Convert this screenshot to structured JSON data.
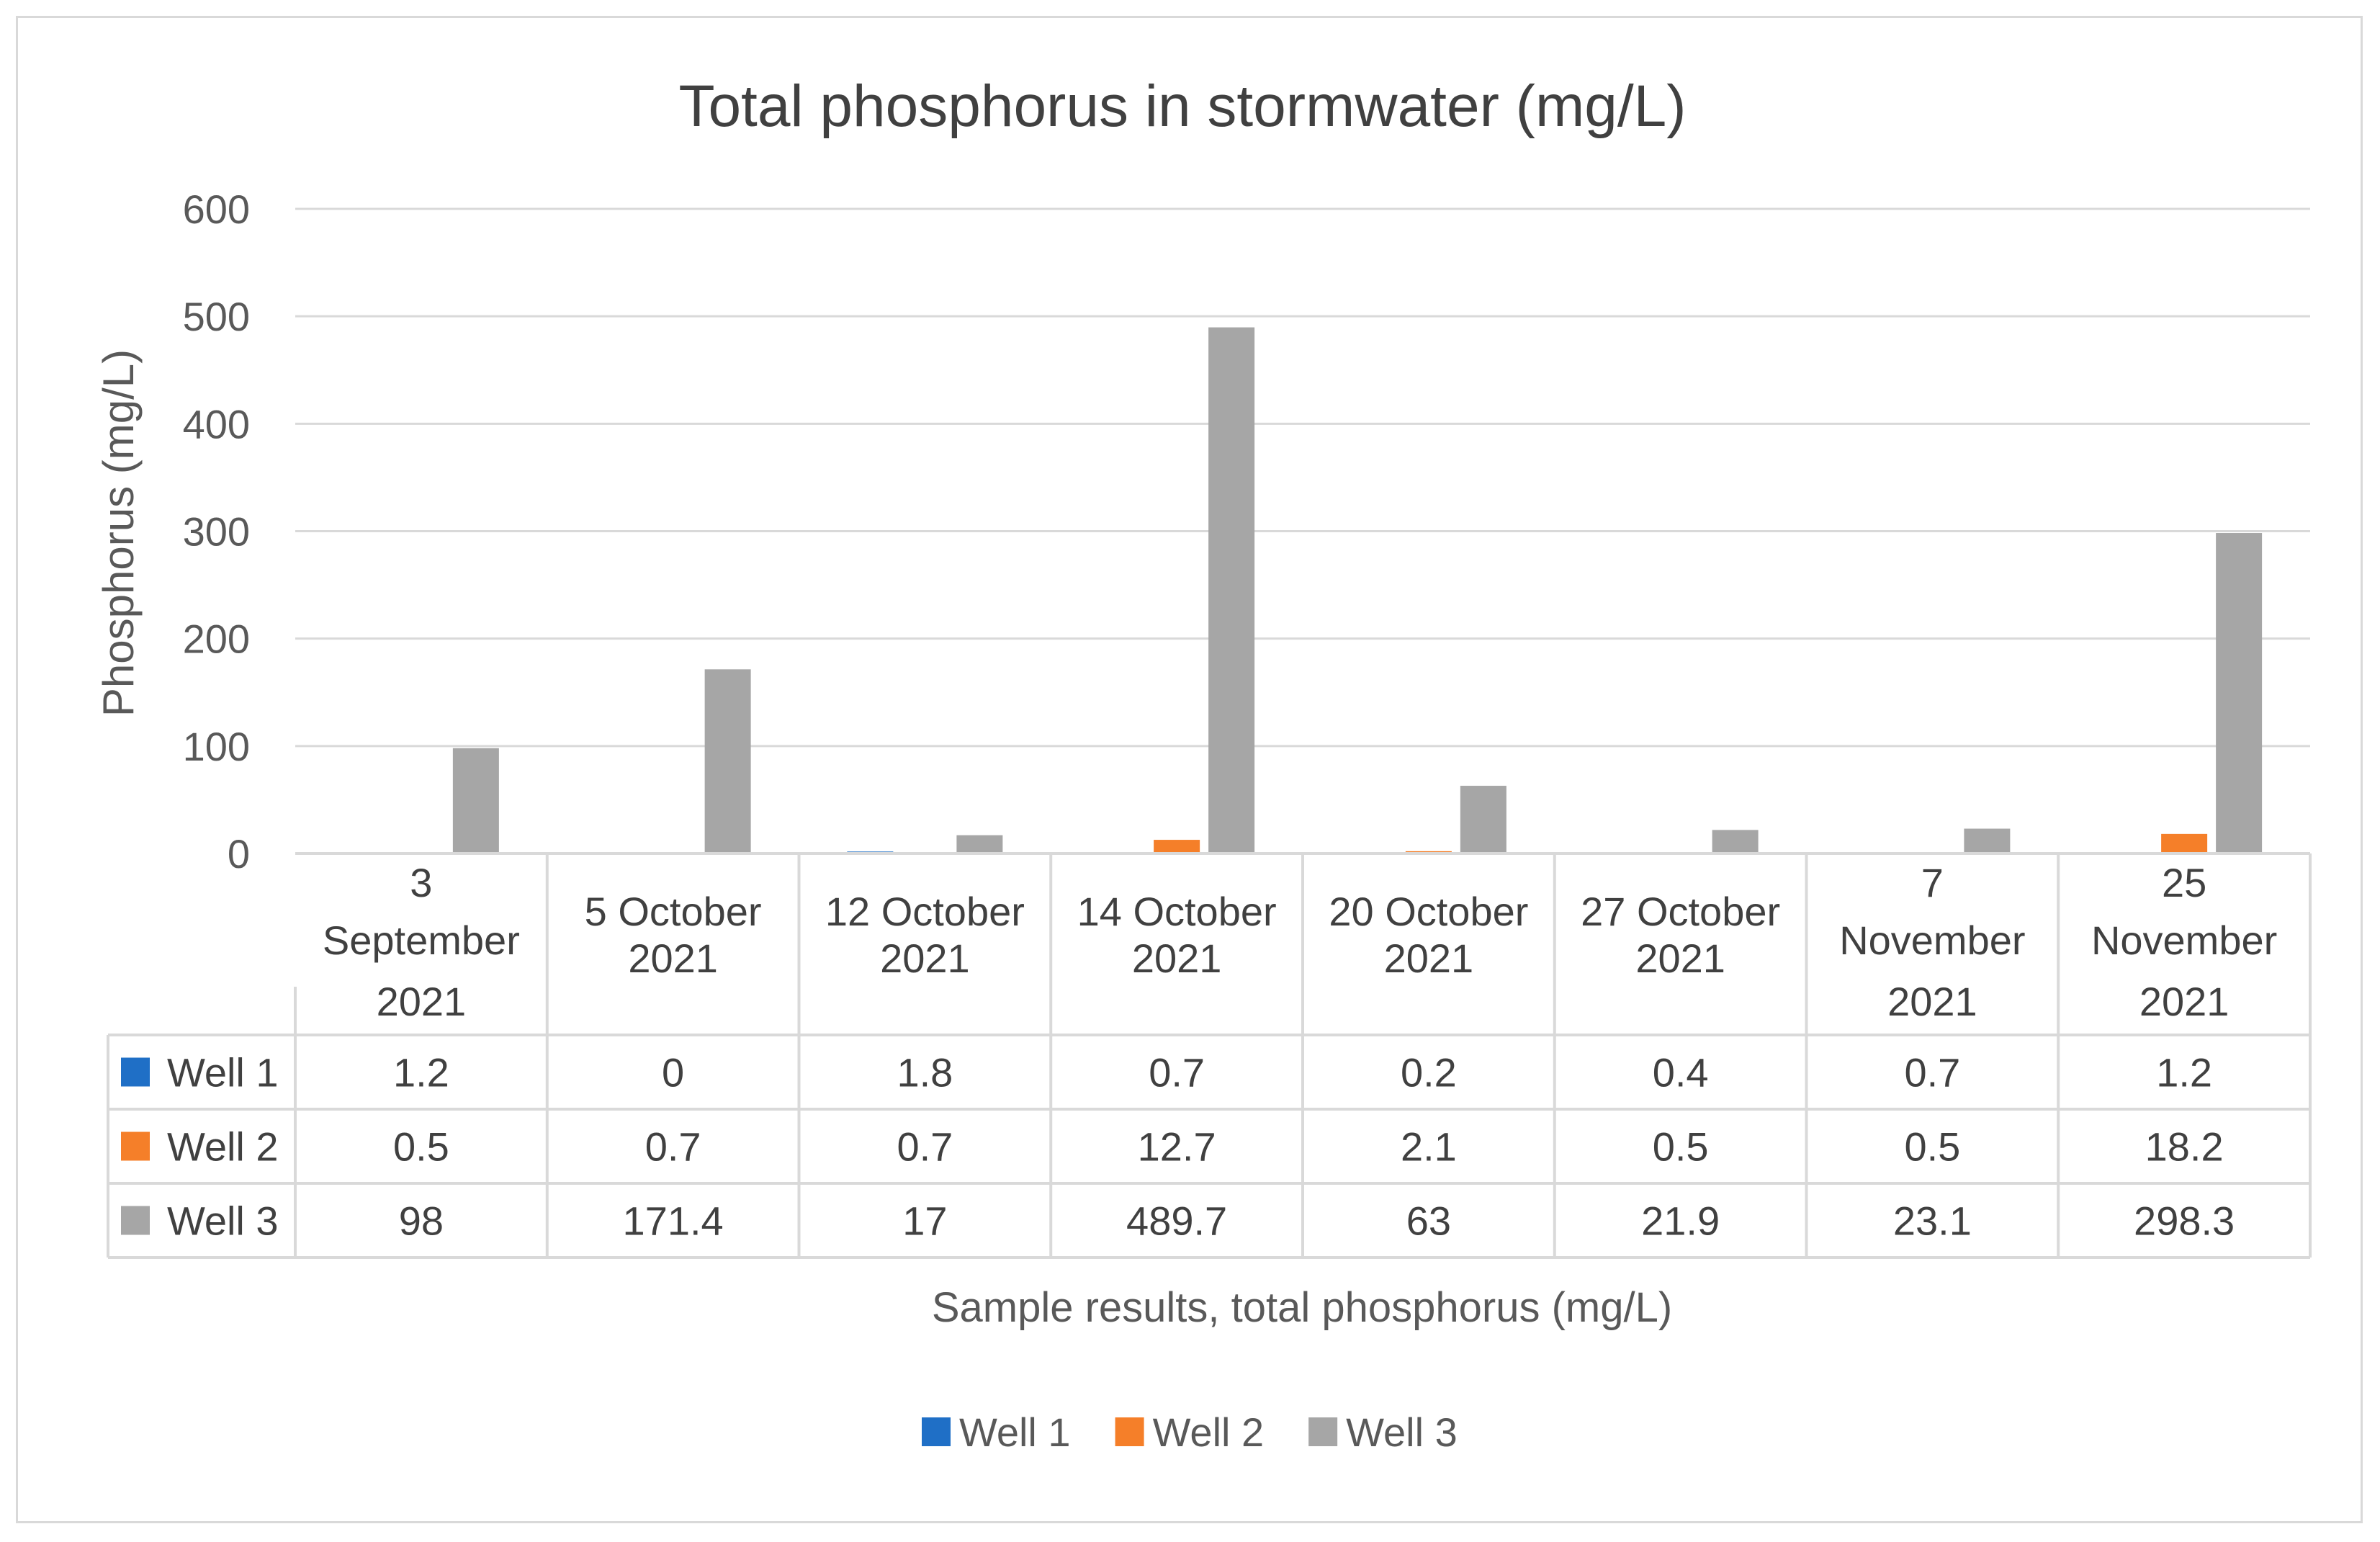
{
  "chart_data": {
    "type": "bar",
    "title": "Total phosphorus in stormwater (mg/L)",
    "xlabel": "Sample results, total phosphorus (mg/L)",
    "ylabel": "Phosphorus (mg/L)",
    "ylim": [
      0,
      600
    ],
    "yticks": [
      0,
      100,
      200,
      300,
      400,
      500,
      600
    ],
    "grid": true,
    "legend_position": "bottom",
    "categories": [
      [
        "3",
        "September",
        "2021"
      ],
      [
        "5 October",
        "2021"
      ],
      [
        "12 October",
        "2021"
      ],
      [
        "14 October",
        "2021"
      ],
      [
        "20 October",
        "2021"
      ],
      [
        "27 October",
        "2021"
      ],
      [
        "7",
        "November",
        "2021"
      ],
      [
        "25",
        "November",
        "2021"
      ]
    ],
    "series": [
      {
        "name": "Well 1",
        "color": "#1f6fc6",
        "values": [
          1.2,
          0,
          1.8,
          0.7,
          0.2,
          0.4,
          0.7,
          1.2
        ],
        "labels": [
          "1.2",
          "0",
          "1.8",
          "0.7",
          "0.2",
          "0.4",
          "0.7",
          "1.2"
        ]
      },
      {
        "name": "Well 2",
        "color": "#f57f29",
        "values": [
          0.5,
          0.7,
          0.7,
          12.7,
          2.1,
          0.5,
          0.5,
          18.2
        ],
        "labels": [
          "0.5",
          "0.7",
          "0.7",
          "12.7",
          "2.1",
          "0.5",
          "0.5",
          "18.2"
        ]
      },
      {
        "name": "Well 3",
        "color": "#a6a6a6",
        "values": [
          98,
          171.4,
          17,
          489.7,
          63,
          21.9,
          23.1,
          298.3
        ],
        "labels": [
          "98",
          "171.4",
          "17",
          "489.7",
          "63",
          "21.9",
          "23.1",
          "298.3"
        ]
      }
    ]
  }
}
